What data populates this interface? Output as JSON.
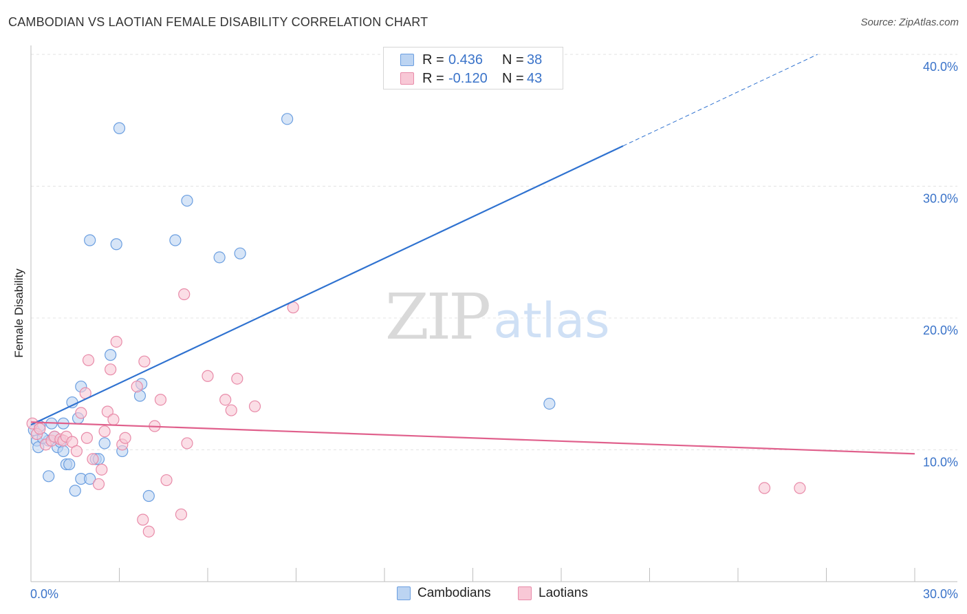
{
  "title": "CAMBODIAN VS LAOTIAN FEMALE DISABILITY CORRELATION CHART",
  "source": "Source: ZipAtlas.com",
  "watermark": {
    "zip": "ZIP",
    "atlas": "atlas"
  },
  "legend_top": [
    {
      "r_label": "R =",
      "r_value": "0.436",
      "n_label": "N =",
      "n_value": "38"
    },
    {
      "r_label": "R =",
      "r_value": "-0.120",
      "n_label": "N =",
      "n_value": "43"
    }
  ],
  "legend_bottom": [
    {
      "label": "Cambodians"
    },
    {
      "label": "Laotians"
    }
  ],
  "colors": {
    "cambodian_fill": "#bcd4f2",
    "cambodian_stroke": "#6a9ee0",
    "cambodian_line": "#2f72d0",
    "laotian_fill": "#f8c8d6",
    "laotian_stroke": "#e88aa8",
    "laotian_line": "#e0608c",
    "tick_label": "#3a73c9",
    "grid": "#e3e3e3"
  },
  "chart_data": {
    "type": "scatter",
    "title": "CAMBODIAN VS LAOTIAN FEMALE DISABILITY CORRELATION CHART",
    "xlabel": "",
    "ylabel": "Female Disability",
    "xlim": [
      0,
      30
    ],
    "ylim": [
      0,
      40
    ],
    "x_ticks": [
      "0.0%",
      "30.0%"
    ],
    "y_ticks": [
      {
        "value": 10,
        "label": "10.0%"
      },
      {
        "value": 20,
        "label": "20.0%"
      },
      {
        "value": 30,
        "label": "30.0%"
      },
      {
        "value": 40,
        "label": "40.0%"
      }
    ],
    "grid": true,
    "legend_position": "bottom",
    "series": [
      {
        "name": "Cambodians",
        "r": 0.436,
        "n": 38,
        "trend": {
          "x": [
            0,
            26.7
          ],
          "y": [
            11.9,
            40.0
          ],
          "solid_until_x": 20.1
        },
        "points": [
          [
            0.1,
            11.5
          ],
          [
            0.2,
            10.7
          ],
          [
            0.25,
            10.2
          ],
          [
            0.3,
            11.8
          ],
          [
            0.6,
            10.7
          ],
          [
            0.6,
            8.0
          ],
          [
            0.7,
            12.0
          ],
          [
            0.8,
            11.0
          ],
          [
            0.9,
            10.2
          ],
          [
            1.0,
            10.6
          ],
          [
            1.1,
            9.9
          ],
          [
            1.1,
            12.0
          ],
          [
            1.2,
            8.9
          ],
          [
            1.3,
            8.9
          ],
          [
            1.4,
            13.6
          ],
          [
            1.5,
            6.9
          ],
          [
            1.6,
            12.4
          ],
          [
            1.7,
            7.8
          ],
          [
            1.7,
            14.8
          ],
          [
            2.0,
            7.8
          ],
          [
            2.0,
            25.9
          ],
          [
            2.2,
            9.3
          ],
          [
            2.3,
            9.3
          ],
          [
            2.5,
            10.5
          ],
          [
            2.7,
            17.2
          ],
          [
            2.9,
            25.6
          ],
          [
            3.0,
            34.4
          ],
          [
            3.1,
            9.9
          ],
          [
            3.7,
            14.1
          ],
          [
            3.75,
            15.0
          ],
          [
            4.0,
            6.5
          ],
          [
            4.9,
            25.9
          ],
          [
            5.3,
            28.9
          ],
          [
            6.4,
            24.6
          ],
          [
            7.1,
            24.9
          ],
          [
            8.7,
            35.1
          ],
          [
            17.6,
            13.5
          ],
          [
            0.4,
            10.9
          ]
        ]
      },
      {
        "name": "Laotians",
        "r": -0.12,
        "n": 43,
        "trend": {
          "x": [
            0,
            30
          ],
          "y": [
            12.1,
            9.7
          ]
        },
        "points": [
          [
            0.05,
            12.0
          ],
          [
            0.2,
            11.2
          ],
          [
            0.3,
            11.6
          ],
          [
            0.5,
            10.4
          ],
          [
            0.7,
            10.7
          ],
          [
            0.8,
            11.0
          ],
          [
            1.0,
            10.8
          ],
          [
            1.1,
            10.7
          ],
          [
            1.2,
            11.0
          ],
          [
            1.4,
            10.6
          ],
          [
            1.55,
            9.9
          ],
          [
            1.7,
            12.8
          ],
          [
            1.85,
            14.3
          ],
          [
            1.9,
            10.9
          ],
          [
            1.95,
            16.8
          ],
          [
            2.1,
            9.3
          ],
          [
            2.3,
            7.4
          ],
          [
            2.4,
            8.5
          ],
          [
            2.5,
            11.4
          ],
          [
            2.6,
            12.9
          ],
          [
            2.7,
            16.1
          ],
          [
            2.8,
            12.3
          ],
          [
            2.9,
            18.2
          ],
          [
            3.1,
            10.4
          ],
          [
            3.2,
            10.9
          ],
          [
            3.6,
            14.8
          ],
          [
            3.8,
            4.7
          ],
          [
            3.85,
            16.7
          ],
          [
            4.0,
            3.8
          ],
          [
            4.2,
            11.8
          ],
          [
            4.4,
            13.8
          ],
          [
            4.6,
            7.7
          ],
          [
            5.1,
            5.1
          ],
          [
            5.2,
            21.8
          ],
          [
            5.3,
            10.5
          ],
          [
            6.0,
            15.6
          ],
          [
            6.6,
            13.8
          ],
          [
            6.8,
            13.0
          ],
          [
            7.0,
            15.4
          ],
          [
            7.6,
            13.3
          ],
          [
            8.9,
            20.8
          ],
          [
            24.9,
            7.1
          ],
          [
            26.1,
            7.1
          ]
        ]
      }
    ]
  }
}
